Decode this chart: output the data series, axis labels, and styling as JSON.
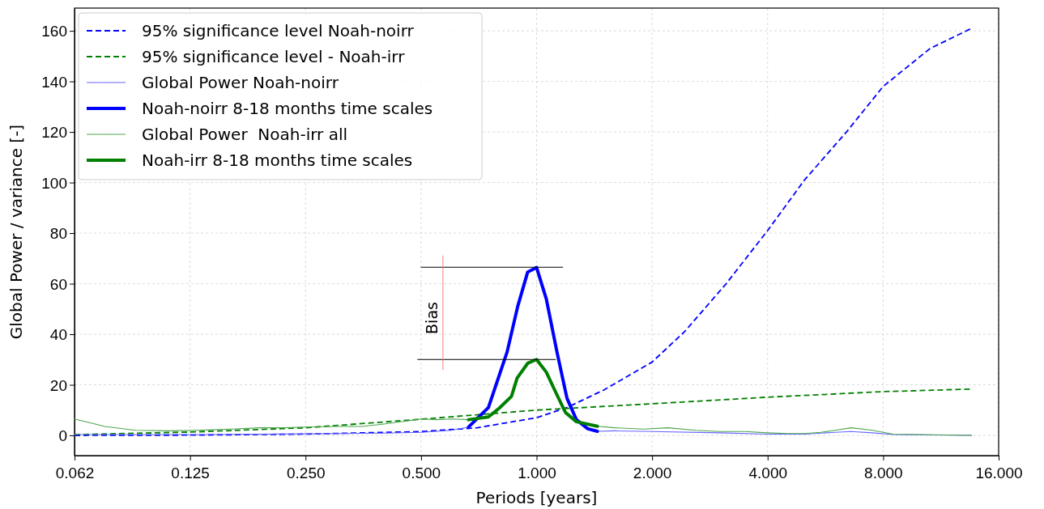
{
  "chart_data": {
    "type": "line",
    "xlabel": "Periods [years]",
    "ylabel": "Global Power / variance [-]",
    "log": "x",
    "xlim": [
      0.0625,
      16
    ],
    "xticks": [
      {
        "value": 0.0625,
        "label": "0.062"
      },
      {
        "value": 0.125,
        "label": "0.125"
      },
      {
        "value": 0.25,
        "label": "0.250"
      },
      {
        "value": 0.5,
        "label": "0.500"
      },
      {
        "value": 1,
        "label": "1.000"
      },
      {
        "value": 2,
        "label": "2.000"
      },
      {
        "value": 4,
        "label": "4.000"
      },
      {
        "value": 8,
        "label": "8.000"
      },
      {
        "value": 16,
        "label": "16.000"
      }
    ],
    "ylim": [
      -8,
      169
    ],
    "yticks": [
      0,
      20,
      40,
      60,
      80,
      100,
      120,
      140,
      160
    ],
    "grid": true,
    "legend": "top left",
    "marker": "none",
    "annotations": [
      "Bias"
    ],
    "series": [
      {
        "name": "95% significance level Noah-noirr",
        "color": "#0000ff",
        "line_style": "dashed",
        "x": [
          0.0625,
          0.125,
          0.25,
          0.5,
          0.7,
          1,
          1.2,
          1.5,
          2,
          2.43,
          3.12,
          4,
          4.99,
          6.42,
          8,
          10.6,
          13.6
        ],
        "values": [
          0,
          0.1,
          0.5,
          1.5,
          3,
          7,
          11,
          18,
          29,
          41,
          60,
          81,
          101,
          120,
          138,
          153,
          161
        ]
      },
      {
        "name": "95% significance level - Noah-irr",
        "color": "#008000",
        "line_style": "dashed",
        "x": [
          0.0625,
          0.125,
          0.25,
          0.5,
          1,
          2,
          4,
          8,
          13.6
        ],
        "values": [
          0.3,
          1.3,
          3,
          6.4,
          10,
          12.5,
          15.1,
          17.3,
          18.3
        ]
      },
      {
        "name": "Global Power Noah-noirr",
        "color": "#6666ff",
        "line_style": "solid",
        "x": [
          0.0625,
          0.125,
          0.25,
          0.4,
          0.5,
          0.6,
          0.665,
          0.749,
          0.838,
          0.893,
          0.948,
          1,
          1.06,
          1.13,
          1.2,
          1.27,
          1.36,
          1.44,
          1.6,
          2,
          3,
          4,
          5,
          6,
          6.6,
          7.5,
          8.5,
          13.6
        ],
        "values": [
          0.3,
          0.3,
          0.6,
          0.9,
          1.2,
          2,
          3.3,
          11,
          33,
          51,
          64.6,
          66.4,
          54,
          33,
          14.7,
          6.2,
          2.6,
          1.6,
          1.8,
          1.5,
          1,
          0.5,
          0.5,
          1.2,
          1.5,
          1,
          0.3,
          0
        ]
      },
      {
        "name": "Noah-noirr 8-18 months time scales",
        "color": "#0000ff",
        "line_style": "solid",
        "x": [
          0.665,
          0.749,
          0.838,
          0.893,
          0.948,
          1,
          1.06,
          1.13,
          1.2,
          1.27,
          1.36,
          1.44
        ],
        "values": [
          3.3,
          11,
          33,
          51,
          64.6,
          66.4,
          54,
          33,
          14.7,
          6.2,
          2.6,
          1.6
        ]
      },
      {
        "name": "Global Power  Noah-irr all",
        "color": "#4da64d",
        "line_style": "solid",
        "x": [
          0.0625,
          0.075,
          0.09,
          0.11,
          0.13,
          0.16,
          0.19,
          0.22,
          0.25,
          0.3,
          0.35,
          0.4,
          0.45,
          0.5,
          0.55,
          0.6,
          0.665,
          0.75,
          0.8,
          0.86,
          0.89,
          0.948,
          1,
          1.06,
          1.13,
          1.19,
          1.27,
          1.44,
          1.6,
          1.9,
          2.2,
          2.6,
          3,
          3.5,
          4,
          4.5,
          5,
          5.5,
          6,
          6.6,
          7.5,
          8.5,
          10,
          13.6
        ],
        "values": [
          6.5,
          3.5,
          2,
          1.8,
          2,
          2.5,
          3,
          3,
          3.3,
          3.5,
          3.5,
          4.5,
          5.5,
          6.5,
          6.2,
          6.5,
          6.2,
          7.3,
          10.8,
          15.4,
          22.7,
          28.5,
          30,
          25,
          16,
          9,
          5.4,
          3.6,
          3,
          2.5,
          3,
          2,
          1.5,
          1.5,
          1,
          0.7,
          0.7,
          1.2,
          2,
          3,
          2,
          0.5,
          0.3,
          0
        ]
      },
      {
        "name": "Noah-irr 8-18 months time scales",
        "color": "#008000",
        "line_style": "solid",
        "x": [
          0.665,
          0.749,
          0.8,
          0.86,
          0.89,
          0.948,
          1,
          1.06,
          1.13,
          1.19,
          1.27,
          1.44
        ],
        "values": [
          6.2,
          7.3,
          10.8,
          15.4,
          22.7,
          28.5,
          30,
          25,
          16,
          9,
          5.4,
          3.6
        ]
      },
      {
        "color": "#000000",
        "line_style": "solid",
        "x": [
          0.5,
          1.17
        ],
        "values": [
          66.5,
          66.5
        ]
      },
      {
        "color": "#000000",
        "line_style": "solid",
        "x": [
          0.49,
          1.12
        ],
        "values": [
          30,
          30
        ]
      },
      {
        "color": "#f08080",
        "line_style": "solid",
        "x": [
          0.57,
          0.57
        ],
        "values": [
          26,
          71
        ]
      }
    ]
  }
}
